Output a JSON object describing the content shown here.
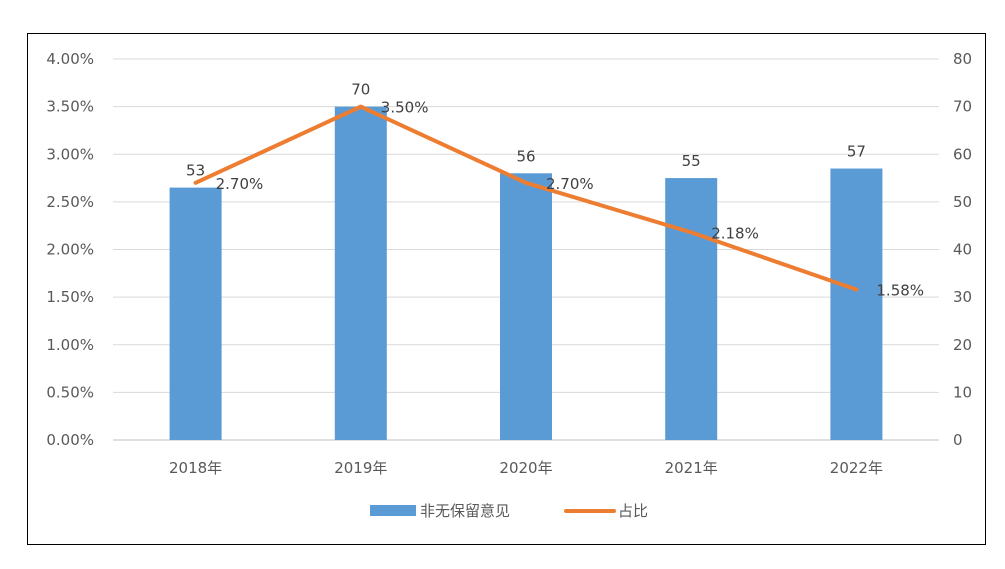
{
  "chart_data": {
    "type": "bar+line",
    "categories": [
      "2018年",
      "2019年",
      "2020年",
      "2021年",
      "2022年"
    ],
    "series": [
      {
        "name": "非无保留意见",
        "type": "bar",
        "axis": "right",
        "values": [
          53,
          70,
          56,
          55,
          57
        ],
        "labels": [
          "53",
          "70",
          "56",
          "55",
          "57"
        ],
        "color": "#5B9BD5"
      },
      {
        "name": "占比",
        "type": "line",
        "axis": "left",
        "values": [
          2.7,
          3.5,
          2.7,
          2.18,
          1.58
        ],
        "labels": [
          "2.70%",
          "3.50%",
          "2.70%",
          "2.18%",
          "1.58%"
        ],
        "color": "#ED7D31"
      }
    ],
    "left_axis": {
      "ylim": [
        0,
        4
      ],
      "ticks": [
        "0.00%",
        "0.50%",
        "1.00%",
        "1.50%",
        "2.00%",
        "2.50%",
        "3.00%",
        "3.50%",
        "4.00%"
      ]
    },
    "right_axis": {
      "ylim": [
        0,
        80
      ],
      "ticks": [
        "0",
        "10",
        "20",
        "30",
        "40",
        "50",
        "60",
        "70",
        "80"
      ]
    },
    "grid": true,
    "legend": "bottom",
    "title": "",
    "xlabel": "",
    "ylabel": ""
  }
}
